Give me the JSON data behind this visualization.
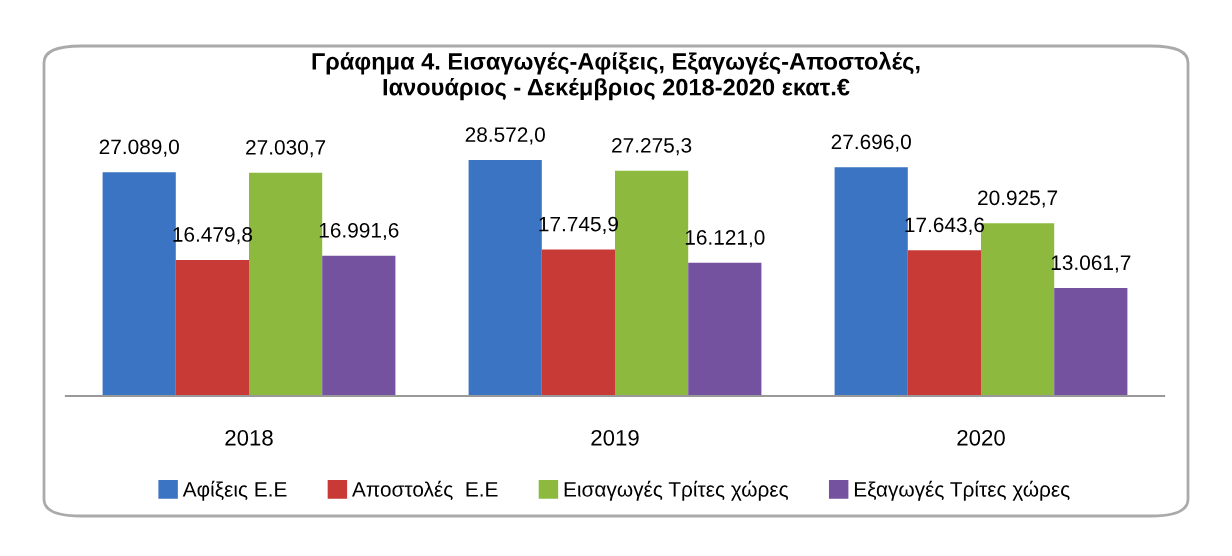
{
  "chart_data": {
    "type": "bar",
    "title": "Γράφημα 4. Εισαγωγές-Αφίξεις, Εξαγωγές-Αποστολές,\nΙανουάριος - Δεκέμβριος 2018-2020 εκατ.€",
    "categories": [
      "2018",
      "2019",
      "2020"
    ],
    "series": [
      {
        "name": "Αφίξεις Ε.Ε",
        "color": "#3a74c2",
        "values": [
          27089.0,
          28572.0,
          27696.0
        ],
        "value_labels": [
          "27.089,0",
          "28.572,0",
          "27.696,0"
        ]
      },
      {
        "name": "Αποστολές  Ε.Ε",
        "color": "#c83a36",
        "values": [
          16479.8,
          17745.9,
          17643.6
        ],
        "value_labels": [
          "16.479,8",
          "17.745,9",
          "17.643,6"
        ]
      },
      {
        "name": "Εισαγωγές Τρίτες χώρες",
        "color": "#8dba3e",
        "values": [
          27030.7,
          27275.3,
          20925.7
        ],
        "value_labels": [
          "27.030,7",
          "27.275,3",
          "20.925,7"
        ]
      },
      {
        "name": "Εξαγωγές Τρίτες χώρες",
        "color": "#7452a0",
        "values": [
          16991.6,
          16121.0,
          13061.7
        ],
        "value_labels": [
          "16.991,6",
          "16.121,0",
          "13.061,7"
        ]
      }
    ],
    "legend": "bottom",
    "grid": false
  }
}
